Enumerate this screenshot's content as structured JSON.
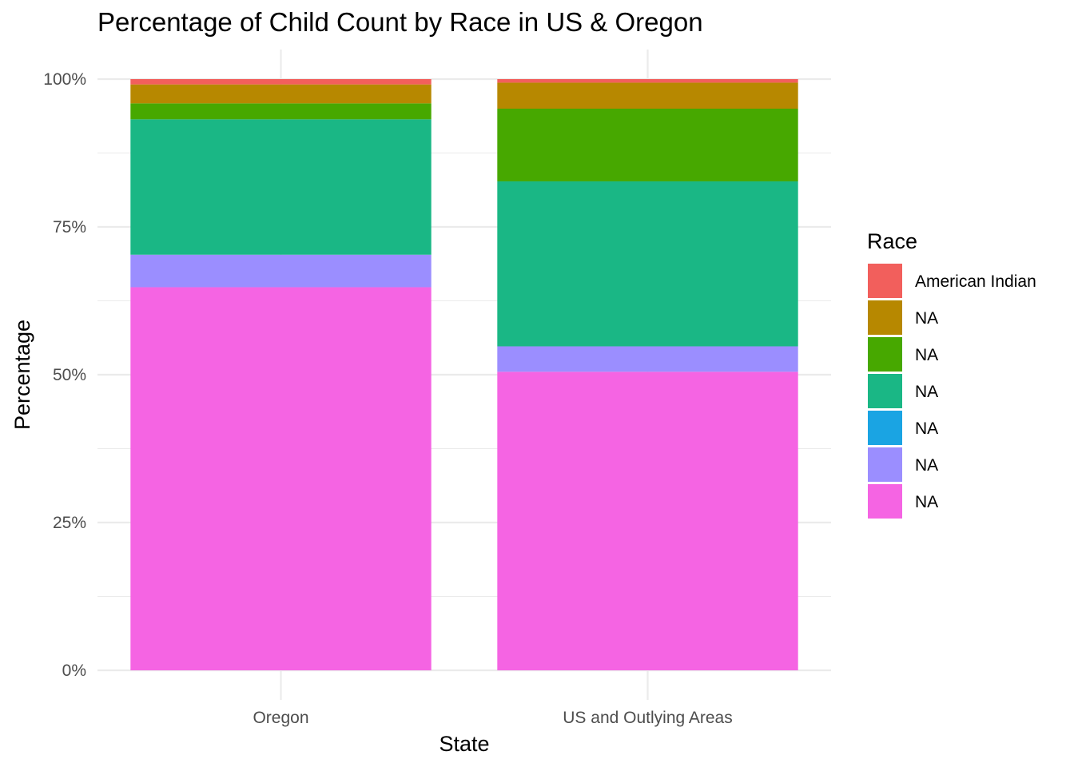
{
  "chart_data": {
    "type": "bar",
    "stacked": true,
    "title": "Percentage of Child Count by Race in US & Oregon",
    "xlabel": "State",
    "ylabel": "Percentage",
    "categories": [
      "Oregon",
      "US and Outlying Areas"
    ],
    "ylim": [
      0,
      1
    ],
    "y_ticks": [
      0,
      0.25,
      0.5,
      0.75,
      1.0
    ],
    "y_tick_labels": [
      "0%",
      "25%",
      "50%",
      "75%",
      "100%"
    ],
    "grid": true,
    "legend_title": "Race",
    "legend_position": "right",
    "series": [
      {
        "name": "NA",
        "color": "#F564E3",
        "values": [
          0.648,
          0.505
        ]
      },
      {
        "name": "NA",
        "color": "#9B8EFF",
        "values": [
          0.055,
          0.043
        ]
      },
      {
        "name": "NA",
        "color": "#1AA4E3",
        "values": [
          0.0,
          0.0
        ]
      },
      {
        "name": "NA",
        "color": "#1AB785",
        "values": [
          0.229,
          0.279
        ]
      },
      {
        "name": "NA",
        "color": "#47A800",
        "values": [
          0.027,
          0.123
        ]
      },
      {
        "name": "NA",
        "color": "#B78800",
        "values": [
          0.032,
          0.044
        ]
      },
      {
        "name": "American Indian",
        "color": "#F25F5C",
        "values": [
          0.009,
          0.006
        ]
      }
    ],
    "legend_entries": [
      {
        "name": "American Indian",
        "color": "#F25F5C"
      },
      {
        "name": "NA",
        "color": "#B78800"
      },
      {
        "name": "NA",
        "color": "#47A800"
      },
      {
        "name": "NA",
        "color": "#1AB785"
      },
      {
        "name": "NA",
        "color": "#1AA4E3"
      },
      {
        "name": "NA",
        "color": "#9B8EFF"
      },
      {
        "name": "NA",
        "color": "#F564E3"
      }
    ]
  }
}
